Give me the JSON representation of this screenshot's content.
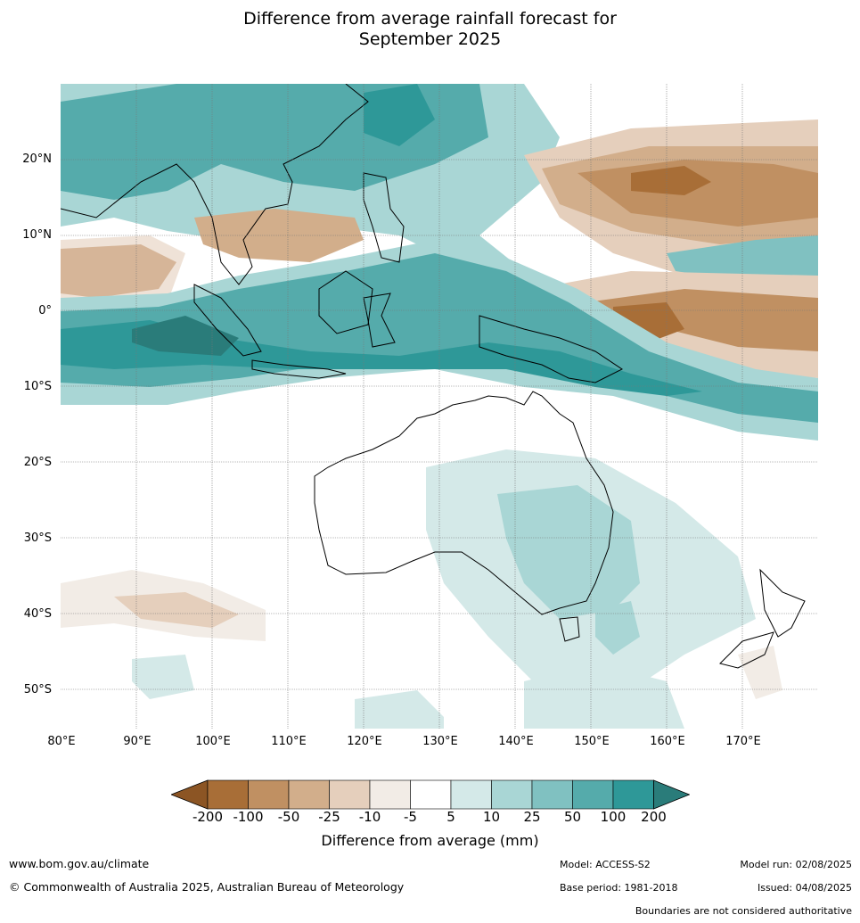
{
  "title_line1": "Difference from average rainfall forecast for",
  "title_line2": "September 2025",
  "lat_labels": [
    "20°N",
    "10°N",
    "0°",
    "10°S",
    "20°S",
    "30°S",
    "40°S",
    "50°S"
  ],
  "lon_labels": [
    "80°E",
    "90°E",
    "100°E",
    "110°E",
    "120°E",
    "130°E",
    "140°E",
    "150°E",
    "160°E",
    "170°E"
  ],
  "colorbar": {
    "title": "Difference from average (mm)",
    "ticks": [
      "-200",
      "-100",
      "-50",
      "-25",
      "-10",
      "-5",
      "5",
      "10",
      "25",
      "50",
      "100",
      "200"
    ],
    "colors": [
      "#a86e37",
      "#c09062",
      "#d2ae8b",
      "#e5cfbc",
      "#f2ece6",
      "#ffffff",
      "#d4e9e8",
      "#a9d6d5",
      "#80c1c1",
      "#55abab",
      "#2e9898"
    ],
    "low_extend_color": "#8c5524",
    "high_extend_color": "#2a7c7a"
  },
  "footer": {
    "website": "www.bom.gov.au/climate",
    "copyright": "© Commonwealth of Australia 2025, Australian Bureau of Meteorology",
    "model": "Model: ACCESS-S2",
    "base_period": "Base period: 1981-2018",
    "model_run": "Model run: 02/08/2025",
    "issued": "Issued: 04/08/2025",
    "boundaries": "Boundaries are not considered authoritative"
  }
}
